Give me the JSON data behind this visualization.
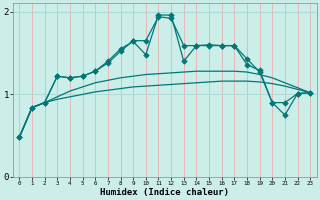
{
  "xlabel": "Humidex (Indice chaleur)",
  "xlim": [
    -0.5,
    23.5
  ],
  "ylim": [
    0,
    2.1
  ],
  "xticks": [
    0,
    1,
    2,
    3,
    4,
    5,
    6,
    7,
    8,
    9,
    10,
    11,
    12,
    13,
    14,
    15,
    16,
    17,
    18,
    19,
    20,
    21,
    22,
    23
  ],
  "yticks": [
    0,
    1,
    2
  ],
  "bg_color": "#cceee8",
  "line_color": "#007878",
  "grid_color_v": "#e8b0b0",
  "grid_color_h": "#b0dcd8",
  "line1_x": [
    0,
    1,
    2,
    3,
    4,
    5,
    6,
    7,
    8,
    9,
    10,
    11,
    12,
    13,
    14,
    15,
    16,
    17,
    18,
    19,
    20,
    21,
    22,
    23
  ],
  "line1_y": [
    0.48,
    0.84,
    0.9,
    0.94,
    0.97,
    1.0,
    1.03,
    1.05,
    1.07,
    1.09,
    1.1,
    1.11,
    1.12,
    1.13,
    1.14,
    1.15,
    1.16,
    1.16,
    1.16,
    1.15,
    1.13,
    1.1,
    1.06,
    1.02
  ],
  "line2_x": [
    0,
    1,
    2,
    3,
    4,
    5,
    6,
    7,
    8,
    9,
    10,
    11,
    12,
    13,
    14,
    15,
    16,
    17,
    18,
    19,
    20,
    21,
    22,
    23
  ],
  "line2_y": [
    0.48,
    0.84,
    0.9,
    0.97,
    1.04,
    1.09,
    1.14,
    1.17,
    1.2,
    1.22,
    1.24,
    1.25,
    1.26,
    1.27,
    1.28,
    1.28,
    1.28,
    1.28,
    1.27,
    1.24,
    1.2,
    1.14,
    1.08,
    1.02
  ],
  "line3_x": [
    0,
    1,
    2,
    3,
    4,
    5,
    6,
    7,
    8,
    9,
    10,
    11,
    12,
    13,
    14,
    15,
    16,
    17,
    18,
    19,
    20,
    21,
    22,
    23
  ],
  "line3_y": [
    0.48,
    0.84,
    0.9,
    1.22,
    1.2,
    1.22,
    1.28,
    1.4,
    1.55,
    1.64,
    1.48,
    1.96,
    1.96,
    1.4,
    1.59,
    1.6,
    1.59,
    1.59,
    1.43,
    1.27,
    0.9,
    0.9,
    1.01,
    1.02
  ],
  "line4_x": [
    0,
    1,
    2,
    3,
    4,
    5,
    6,
    7,
    8,
    9,
    10,
    11,
    12,
    13,
    14,
    15,
    16,
    17,
    18,
    19,
    20,
    21,
    22,
    23
  ],
  "line4_y": [
    0.48,
    0.84,
    0.9,
    1.22,
    1.2,
    1.22,
    1.28,
    1.38,
    1.52,
    1.65,
    1.65,
    1.94,
    1.92,
    1.59,
    1.59,
    1.59,
    1.59,
    1.59,
    1.36,
    1.29,
    0.9,
    0.75,
    1.01,
    1.02
  ]
}
